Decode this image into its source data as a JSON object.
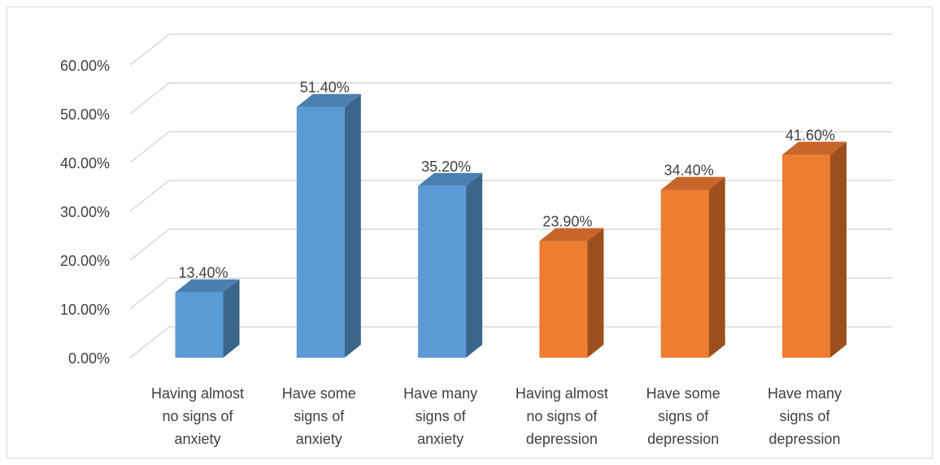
{
  "chart_data": {
    "type": "bar",
    "title": "",
    "xlabel": "",
    "ylabel": "",
    "ylim": [
      0,
      0.6
    ],
    "yticks": [
      0,
      0.1,
      0.2,
      0.3,
      0.4,
      0.5,
      0.6
    ],
    "ytick_labels": [
      "0.00%",
      "10.00%",
      "20.00%",
      "30.00%",
      "40.00%",
      "50.00%",
      "60.00%"
    ],
    "grid": true,
    "legend": "none",
    "categories": [
      [
        "Having almost",
        "no signs of",
        "anxiety"
      ],
      [
        "Have some",
        "signs of",
        "anxiety"
      ],
      [
        "Have many",
        "signs of",
        "anxiety"
      ],
      [
        "Having almost",
        "no signs of",
        "depression"
      ],
      [
        "Have some",
        "signs of",
        "depression"
      ],
      [
        "Have many",
        "signs of",
        "depression"
      ]
    ],
    "values": [
      0.134,
      0.514,
      0.352,
      0.239,
      0.344,
      0.416
    ],
    "data_labels": [
      "13.40%",
      "51.40%",
      "35.20%",
      "23.90%",
      "34.40%",
      "41.60%"
    ],
    "bar_colors": [
      "#5b9bd5",
      "#5b9bd5",
      "#5b9bd5",
      "#ed7d31",
      "#ed7d31",
      "#ed7d31"
    ],
    "bar_side_colors": [
      "#3b6689",
      "#3b6689",
      "#3b6689",
      "#9c4f1d",
      "#9c4f1d",
      "#9c4f1d"
    ],
    "bar_top_colors": [
      "#4a7fb1",
      "#4a7fb1",
      "#4a7fb1",
      "#c7652a",
      "#c7652a",
      "#c7652a"
    ],
    "grid_color": "#d9d9d9"
  }
}
